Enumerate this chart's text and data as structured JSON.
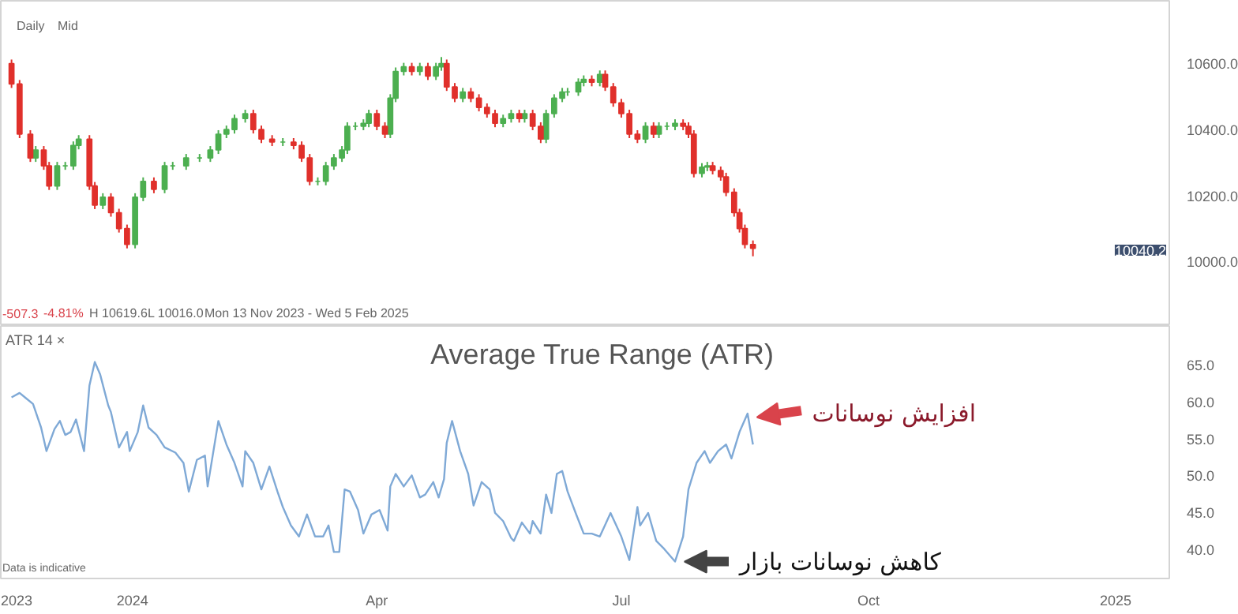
{
  "chart_data": [
    {
      "type": "candlestick",
      "xlim": [
        "2023-11-13",
        "2025-01-21"
      ],
      "ylim": [
        9805,
        10790
      ],
      "yticks": [
        {
          "value": 10000,
          "label": "10000.0"
        },
        {
          "value": 10200,
          "label": "10200.0"
        },
        {
          "value": 10400,
          "label": "10400.0"
        },
        {
          "value": 10600,
          "label": "10600.0"
        }
      ],
      "tick_labels": "y",
      "annotations": [
        "Daily",
        "Mid",
        "-507.3",
        "-4.81%",
        "H 10619.6",
        "L 10016.0",
        "Mon 13 Nov 2023 - Wed 5 Feb 2025",
        "10040.2"
      ],
      "x": [
        "2023-11-17",
        "2023-11-20",
        "2023-11-24",
        "2023-11-26",
        "2023-11-29",
        "2023-12-01",
        "2023-12-04",
        "2023-12-07",
        "2023-12-10",
        "2023-12-12",
        "2023-12-16",
        "2023-12-18",
        "2023-12-21",
        "2023-12-24",
        "2023-12-27",
        "2023-12-30",
        "2024-01-02",
        "2024-01-05",
        "2024-01-09",
        "2024-01-13",
        "2024-01-16",
        "2024-01-21",
        "2024-01-26",
        "2024-01-30",
        "2024-02-02",
        "2024-02-05",
        "2024-02-08",
        "2024-02-12",
        "2024-02-15",
        "2024-02-18",
        "2024-02-22",
        "2024-02-26",
        "2024-03-01",
        "2024-03-04",
        "2024-03-07",
        "2024-03-10",
        "2024-03-13",
        "2024-03-16",
        "2024-03-19",
        "2024-03-21",
        "2024-03-24",
        "2024-03-27",
        "2024-03-29",
        "2024-04-01",
        "2024-04-04",
        "2024-04-06",
        "2024-04-08",
        "2024-04-11",
        "2024-04-14",
        "2024-04-17",
        "2024-04-20",
        "2024-04-23",
        "2024-04-25",
        "2024-04-27",
        "2024-04-30",
        "2024-05-03",
        "2024-05-06",
        "2024-05-09",
        "2024-05-12",
        "2024-05-15",
        "2024-05-18",
        "2024-05-21",
        "2024-05-24",
        "2024-05-26",
        "2024-05-29",
        "2024-06-01",
        "2024-06-03",
        "2024-06-06",
        "2024-06-09",
        "2024-06-11",
        "2024-06-15",
        "2024-06-17",
        "2024-06-20",
        "2024-06-23",
        "2024-06-25",
        "2024-06-28",
        "2024-07-01",
        "2024-07-04",
        "2024-07-07",
        "2024-07-10",
        "2024-07-13",
        "2024-07-15",
        "2024-07-18",
        "2024-07-21",
        "2024-07-24",
        "2024-07-26",
        "2024-07-28",
        "2024-07-31",
        "2024-08-02",
        "2024-08-04",
        "2024-08-07",
        "2024-08-09",
        "2024-08-12",
        "2024-08-14",
        "2024-08-16",
        "2024-08-19"
      ],
      "ohlc": [
        [
          10600,
          10612,
          10526,
          10538
        ],
        [
          10538,
          10550,
          10374,
          10386
        ],
        [
          10386,
          10398,
          10302,
          10314
        ],
        [
          10314,
          10350,
          10302,
          10338
        ],
        [
          10338,
          10350,
          10278,
          10290
        ],
        [
          10290,
          10302,
          10217,
          10229
        ],
        [
          10229,
          10302,
          10217,
          10290
        ],
        [
          10290,
          10302,
          10278,
          10290
        ],
        [
          10290,
          10364,
          10278,
          10352
        ],
        [
          10352,
          10383,
          10340,
          10371
        ],
        [
          10371,
          10383,
          10217,
          10229
        ],
        [
          10229,
          10241,
          10159,
          10171
        ],
        [
          10171,
          10207,
          10159,
          10195
        ],
        [
          10195,
          10207,
          10136,
          10148
        ],
        [
          10148,
          10160,
          10088,
          10100
        ],
        [
          10100,
          10112,
          10040,
          10052
        ],
        [
          10052,
          10207,
          10040,
          10195
        ],
        [
          10195,
          10255,
          10183,
          10243
        ],
        [
          10243,
          10255,
          10207,
          10219
        ],
        [
          10219,
          10302,
          10207,
          10290
        ],
        [
          10290,
          10302,
          10278,
          10290
        ],
        [
          10290,
          10326,
          10278,
          10314
        ],
        [
          10314,
          10326,
          10302,
          10314
        ],
        [
          10314,
          10350,
          10302,
          10338
        ],
        [
          10338,
          10398,
          10326,
          10386
        ],
        [
          10386,
          10412,
          10374,
          10400
        ],
        [
          10400,
          10445,
          10388,
          10433
        ],
        [
          10433,
          10460,
          10421,
          10448
        ],
        [
          10448,
          10460,
          10388,
          10400
        ],
        [
          10400,
          10412,
          10359,
          10371
        ],
        [
          10371,
          10383,
          10350,
          10362
        ],
        [
          10362,
          10374,
          10350,
          10362
        ],
        [
          10362,
          10374,
          10340,
          10352
        ],
        [
          10352,
          10364,
          10302,
          10314
        ],
        [
          10314,
          10326,
          10231,
          10243
        ],
        [
          10243,
          10255,
          10231,
          10243
        ],
        [
          10243,
          10302,
          10231,
          10290
        ],
        [
          10290,
          10326,
          10278,
          10314
        ],
        [
          10314,
          10350,
          10302,
          10338
        ],
        [
          10338,
          10422,
          10326,
          10410
        ],
        [
          10410,
          10422,
          10398,
          10410
        ],
        [
          10410,
          10431,
          10398,
          10419
        ],
        [
          10419,
          10460,
          10407,
          10448
        ],
        [
          10448,
          10460,
          10398,
          10410
        ],
        [
          10410,
          10422,
          10374,
          10386
        ],
        [
          10386,
          10507,
          10374,
          10495
        ],
        [
          10495,
          10588,
          10483,
          10576
        ],
        [
          10576,
          10602,
          10564,
          10590
        ],
        [
          10590,
          10602,
          10564,
          10576
        ],
        [
          10576,
          10602,
          10564,
          10590
        ],
        [
          10590,
          10602,
          10550,
          10562
        ],
        [
          10562,
          10602,
          10550,
          10590
        ],
        [
          10590,
          10619.6,
          10578,
          10600
        ],
        [
          10600,
          10612,
          10517,
          10529
        ],
        [
          10529,
          10541,
          10483,
          10495
        ],
        [
          10495,
          10526,
          10483,
          10514
        ],
        [
          10514,
          10526,
          10483,
          10495
        ],
        [
          10495,
          10507,
          10455,
          10467
        ],
        [
          10467,
          10479,
          10436,
          10448
        ],
        [
          10448,
          10460,
          10407,
          10419
        ],
        [
          10419,
          10445,
          10407,
          10433
        ],
        [
          10433,
          10460,
          10421,
          10448
        ],
        [
          10448,
          10460,
          10421,
          10433
        ],
        [
          10433,
          10460,
          10421,
          10448
        ],
        [
          10448,
          10460,
          10398,
          10410
        ],
        [
          10410,
          10422,
          10359,
          10371
        ],
        [
          10371,
          10460,
          10359,
          10448
        ],
        [
          10448,
          10507,
          10436,
          10495
        ],
        [
          10495,
          10526,
          10483,
          10514
        ],
        [
          10514,
          10526,
          10502,
          10514
        ],
        [
          10514,
          10555,
          10502,
          10543
        ],
        [
          10543,
          10564,
          10531,
          10552
        ],
        [
          10552,
          10564,
          10531,
          10543
        ],
        [
          10543,
          10579,
          10531,
          10567
        ],
        [
          10567,
          10579,
          10517,
          10529
        ],
        [
          10529,
          10541,
          10469,
          10481
        ],
        [
          10481,
          10493,
          10436,
          10448
        ],
        [
          10448,
          10460,
          10374,
          10386
        ],
        [
          10386,
          10398,
          10359,
          10371
        ],
        [
          10371,
          10422,
          10359,
          10410
        ],
        [
          10410,
          10422,
          10374,
          10386
        ],
        [
          10386,
          10422,
          10374,
          10410
        ],
        [
          10410,
          10422,
          10398,
          10410
        ],
        [
          10410,
          10431,
          10398,
          10419
        ],
        [
          10419,
          10431,
          10398,
          10410
        ],
        [
          10410,
          10422,
          10374,
          10386
        ],
        [
          10386,
          10398,
          10255,
          10267
        ],
        [
          10267,
          10298,
          10255,
          10286
        ],
        [
          10286,
          10302,
          10274,
          10290
        ],
        [
          10290,
          10302,
          10264,
          10276
        ],
        [
          10276,
          10288,
          10245,
          10257
        ],
        [
          10257,
          10269,
          10198,
          10210
        ],
        [
          10210,
          10222,
          10136,
          10148
        ],
        [
          10148,
          10160,
          10088,
          10100
        ],
        [
          10100,
          10112,
          10040,
          10052
        ],
        [
          10052,
          10064,
          10016.0,
          10040.2
        ]
      ]
    },
    {
      "type": "line",
      "title": "Average True Range (ATR)",
      "xlim": [
        "2023-11-13",
        "2025-01-21"
      ],
      "ylim": [
        36,
        70.3
      ],
      "xticks": [
        {
          "value": "2023-11-18",
          "label": "2023"
        },
        {
          "value": "2024-01-01",
          "label": "2024"
        },
        {
          "value": "2024-04-01",
          "label": "Apr"
        },
        {
          "value": "2024-07-01",
          "label": "Jul"
        },
        {
          "value": "2024-10-01",
          "label": "Oct"
        },
        {
          "value": "2025-01-01",
          "label": "2025"
        }
      ],
      "yticks": [
        {
          "value": 40,
          "label": "40.0"
        },
        {
          "value": 45,
          "label": "45.0"
        },
        {
          "value": 50,
          "label": "50.0"
        },
        {
          "value": 55,
          "label": "55.0"
        },
        {
          "value": 60,
          "label": "60.0"
        },
        {
          "value": 65,
          "label": "65.0"
        }
      ],
      "annotations": [
        "ATR 14 ×",
        "Data is indicative",
        {
          "text": "افزایش نوسانات",
          "x": "2024-08-17",
          "y": 58.4
        },
        {
          "text": "کاهش نوسانات بازار",
          "x": "2024-07-21",
          "y": 38.3
        }
      ],
      "x": [
        "2023-11-17",
        "2023-11-20",
        "2023-11-22",
        "2023-11-25",
        "2023-11-28",
        "2023-11-30",
        "2023-12-03",
        "2023-12-05",
        "2023-12-07",
        "2023-12-09",
        "2023-12-11",
        "2023-12-14",
        "2023-12-16",
        "2023-12-18",
        "2023-12-20",
        "2023-12-23",
        "2023-12-24",
        "2023-12-27",
        "2023-12-30",
        "2023-12-31",
        "2024-01-03",
        "2024-01-05",
        "2024-01-07",
        "2024-01-10",
        "2024-01-13",
        "2024-01-17",
        "2024-01-20",
        "2024-01-22",
        "2024-01-25",
        "2024-01-28",
        "2024-01-29",
        "2024-02-02",
        "2024-02-05",
        "2024-02-08",
        "2024-02-11",
        "2024-02-12",
        "2024-02-15",
        "2024-02-18",
        "2024-02-21",
        "2024-02-24",
        "2024-02-26",
        "2024-02-29",
        "2024-03-03",
        "2024-03-06",
        "2024-03-09",
        "2024-03-12",
        "2024-03-14",
        "2024-03-16",
        "2024-03-18",
        "2024-03-20",
        "2024-03-22",
        "2024-03-25",
        "2024-03-27",
        "2024-03-30",
        "2024-04-02",
        "2024-04-05",
        "2024-04-06",
        "2024-04-08",
        "2024-04-11",
        "2024-04-14",
        "2024-04-17",
        "2024-04-19",
        "2024-04-22",
        "2024-04-24",
        "2024-04-26",
        "2024-04-27",
        "2024-04-29",
        "2024-05-02",
        "2024-05-05",
        "2024-05-07",
        "2024-05-10",
        "2024-05-13",
        "2024-05-15",
        "2024-05-18",
        "2024-05-21",
        "2024-05-22",
        "2024-05-25",
        "2024-05-28",
        "2024-05-29",
        "2024-06-01",
        "2024-06-03",
        "2024-06-05",
        "2024-06-07",
        "2024-06-09",
        "2024-06-11",
        "2024-06-14",
        "2024-06-17",
        "2024-06-20",
        "2024-06-23",
        "2024-06-27",
        "2024-06-30",
        "2024-07-01",
        "2024-07-04",
        "2024-07-07",
        "2024-07-08",
        "2024-07-11",
        "2024-07-14",
        "2024-07-17",
        "2024-07-21",
        "2024-07-24",
        "2024-07-26",
        "2024-07-29",
        "2024-08-01",
        "2024-08-03",
        "2024-08-06",
        "2024-08-09",
        "2024-08-11",
        "2024-08-14",
        "2024-08-17",
        "2024-08-19"
      ],
      "series": [
        {
          "color": "#7fa9d6",
          "values": [
            60.6,
            61.2,
            60.6,
            59.7,
            56.5,
            53.3,
            56.3,
            57.4,
            55.5,
            55.9,
            57.6,
            53.3,
            62.2,
            65.4,
            63.7,
            59.5,
            58.6,
            53.8,
            55.9,
            53.3,
            55.9,
            59.5,
            56.5,
            55.5,
            53.8,
            53.1,
            51.7,
            47.8,
            52.1,
            52.7,
            48.5,
            57.4,
            54.2,
            51.7,
            48.5,
            53.3,
            51.7,
            48.1,
            51.2,
            47.8,
            45.7,
            43.2,
            41.7,
            44.7,
            41.7,
            41.7,
            43.2,
            39.6,
            39.6,
            48.1,
            47.8,
            45.3,
            42.1,
            44.7,
            45.3,
            42.5,
            48.5,
            50.2,
            48.5,
            50.0,
            47.0,
            47.4,
            49.1,
            47.0,
            49.5,
            54.4,
            57.4,
            53.3,
            50.2,
            45.9,
            49.1,
            48.1,
            44.9,
            43.8,
            41.5,
            41.1,
            43.6,
            42.1,
            43.8,
            42.1,
            47.4,
            44.9,
            50.2,
            50.6,
            47.8,
            44.9,
            42.1,
            42.1,
            41.7,
            44.9,
            42.5,
            41.7,
            38.5,
            45.7,
            43.2,
            44.9,
            41.1,
            40.0,
            38.3,
            41.7,
            48.1,
            51.7,
            53.3,
            51.7,
            53.3,
            54.2,
            52.3,
            55.9,
            58.4,
            54.2
          ]
        }
      ]
    }
  ]
}
